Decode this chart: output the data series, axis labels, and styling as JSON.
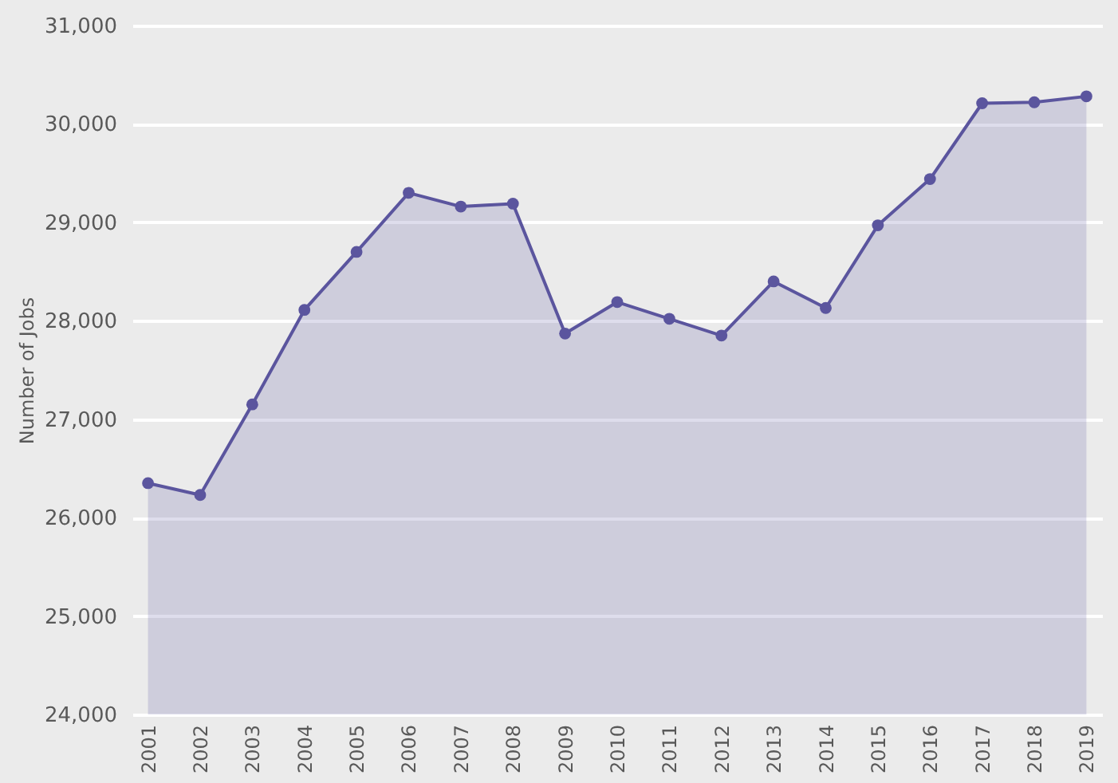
{
  "chart_data": {
    "type": "area",
    "ylabel": "Number of Jobs",
    "categories": [
      "2001",
      "2002",
      "2003",
      "2004",
      "2005",
      "2006",
      "2007",
      "2008",
      "2009",
      "2010",
      "2011",
      "2012",
      "2013",
      "2014",
      "2015",
      "2016",
      "2017",
      "2018",
      "2019"
    ],
    "series": [
      {
        "color": "#5b559e",
        "values": [
          26350,
          26230,
          27150,
          28110,
          28700,
          29300,
          29160,
          29190,
          27870,
          28190,
          28020,
          27850,
          28400,
          28130,
          28970,
          29440,
          30210,
          30220,
          30280
        ]
      }
    ],
    "ylim": [
      24000,
      31000
    ],
    "yticks": [
      {
        "value": 24000,
        "label": "24,000"
      },
      {
        "value": 25000,
        "label": "25,000"
      },
      {
        "value": 26000,
        "label": "26,000"
      },
      {
        "value": 27000,
        "label": "27,000"
      },
      {
        "value": 28000,
        "label": "28,000"
      },
      {
        "value": 29000,
        "label": "29,000"
      },
      {
        "value": 30000,
        "label": "30,000"
      },
      {
        "value": 31000,
        "label": "31,000"
      }
    ],
    "grid": "y",
    "marker": "circle",
    "line_style": "solid"
  }
}
